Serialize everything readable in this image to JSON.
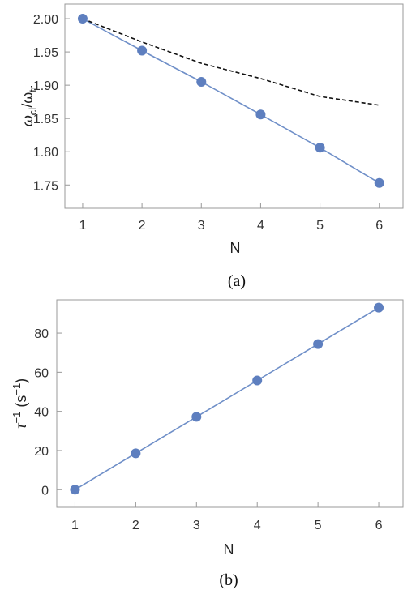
{
  "chart_data": [
    {
      "type": "line",
      "caption": "(a)",
      "xlabel": "N",
      "ylabel": {
        "main": "ω",
        "sub1": "cl",
        "sep": "/ω",
        "sub2": "tr"
      },
      "x": [
        1,
        2,
        3,
        4,
        5,
        6
      ],
      "xticks": [
        "1",
        "2",
        "3",
        "4",
        "5",
        "6"
      ],
      "yticks": [
        "1.75",
        "1.80",
        "1.85",
        "1.90",
        "1.95",
        "2.00"
      ],
      "xlim": [
        0.7,
        6.4
      ],
      "ylim": [
        1.715,
        2.022
      ],
      "grid": false,
      "series": [
        {
          "values": [
            2.0,
            1.952,
            1.905,
            1.856,
            1.806,
            1.753
          ],
          "style": "solid-markers",
          "color": "#6f8fc8",
          "marker_color": "#5e7fbf"
        },
        {
          "values": [
            2.0,
            1.965,
            1.933,
            1.91,
            1.883,
            1.87
          ],
          "style": "dashed",
          "color": "#111111"
        }
      ]
    },
    {
      "type": "line",
      "caption": "(b)",
      "xlabel": "N",
      "ylabel": {
        "main": "τ",
        "sup1": "−1",
        "mid": " (s",
        "sup2": "−1",
        "end": ")"
      },
      "x": [
        1,
        2,
        3,
        4,
        5,
        6
      ],
      "xticks": [
        "1",
        "2",
        "3",
        "4",
        "5",
        "6"
      ],
      "yticks": [
        "0",
        "20",
        "40",
        "60",
        "80"
      ],
      "xlim": [
        0.7,
        6.4
      ],
      "ylim": [
        -9,
        97
      ],
      "grid": false,
      "series": [
        {
          "values": [
            0,
            18.6,
            37.2,
            55.8,
            74.4,
            93.0
          ],
          "style": "solid-markers",
          "color": "#6f8fc8",
          "marker_color": "#5e7fbf"
        }
      ]
    }
  ]
}
